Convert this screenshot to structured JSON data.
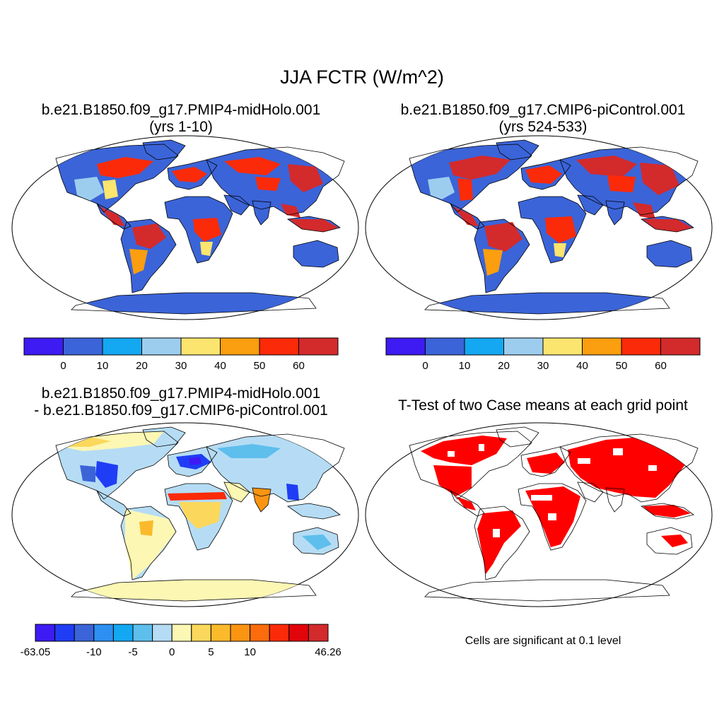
{
  "figure": {
    "title": "JJA FCTR (W/m^2)",
    "note": "Cells are significant at 0.1 level"
  },
  "panels": [
    {
      "title_line1": "b.e21.B1850.f09_g17.PMIP4-midHolo.001",
      "title_line2": "(yrs 1-10)"
    },
    {
      "title_line1": "b.e21.B1850.f09_g17.CMIP6-piControl.001",
      "title_line2": "(yrs 524-533)"
    },
    {
      "title_line1": "b.e21.B1850.f09_g17.PMIP4-midHolo.001",
      "title_line2": "- b.e21.B1850.f09_g17.CMIP6-piControl.001"
    },
    {
      "title_line1": "T-Test of two Case means at each grid point",
      "title_line2": ""
    }
  ],
  "colorbars": {
    "absolute": {
      "colors": [
        "#3d1bf2",
        "#3b64d8",
        "#14a8f2",
        "#9dcdee",
        "#fbe56e",
        "#fb9e0f",
        "#fb2a09",
        "#d32a2c"
      ],
      "tick_labels": [
        "0",
        "10",
        "20",
        "30",
        "40",
        "50",
        "60"
      ]
    },
    "difference": {
      "colors": [
        "#3d1bf2",
        "#1f3df5",
        "#3b64d8",
        "#2d8ff0",
        "#14a8f2",
        "#5ebeec",
        "#b5dcf4",
        "#fdf7b4",
        "#fbd85c",
        "#fbba2c",
        "#fb9412",
        "#fb6c0c",
        "#fb2a09",
        "#e2040b",
        "#d32a2c"
      ],
      "tick_labels": [
        "-63.05",
        "-10",
        "-5",
        "0",
        "5",
        "10",
        "46.26"
      ]
    }
  }
}
